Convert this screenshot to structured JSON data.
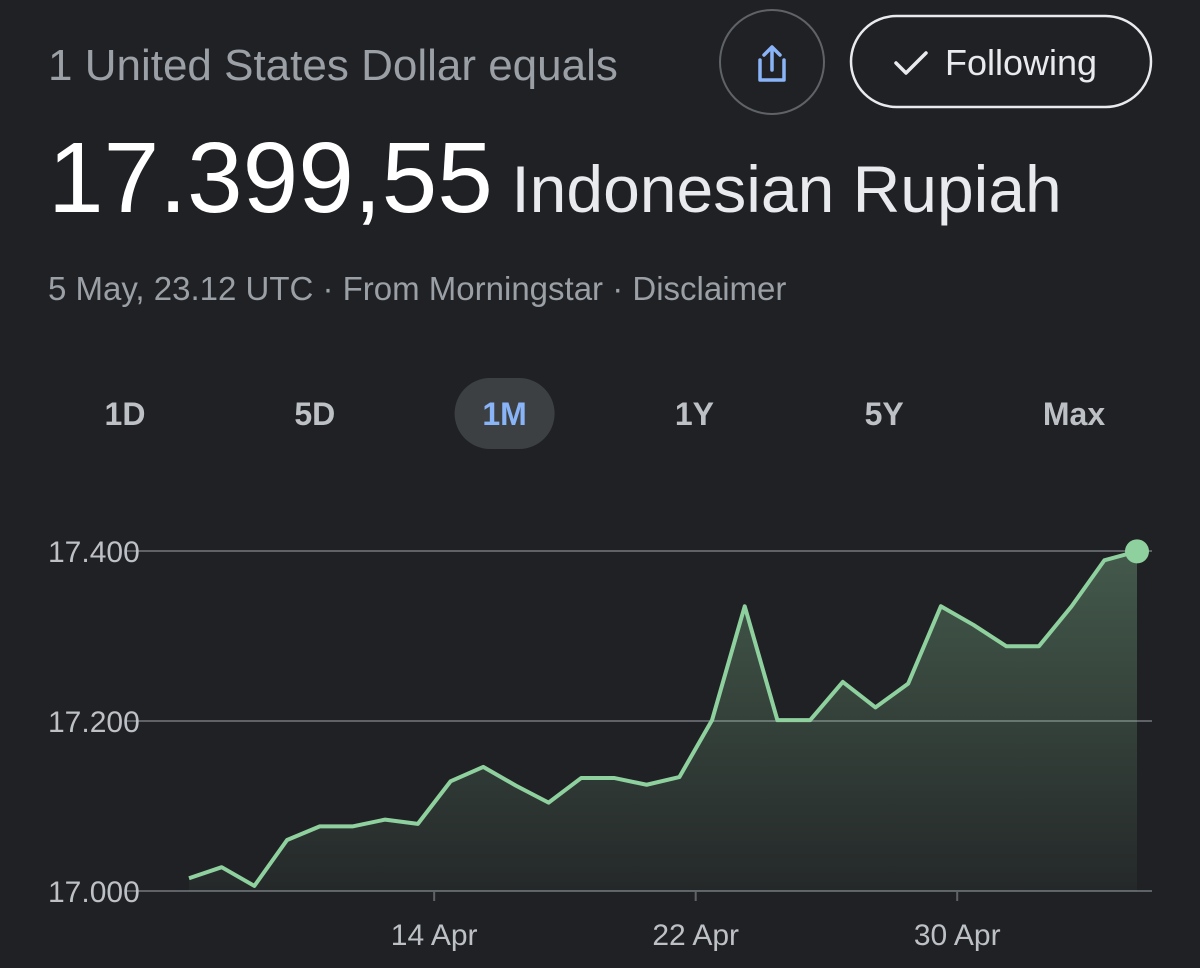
{
  "header": {
    "title": "1 United States Dollar equals",
    "follow_button": "Following",
    "amount": "17.399,55",
    "currency": "Indonesian Rupiah",
    "source_line": "5 May, 23.12 UTC · From Morningstar · Disclaimer"
  },
  "ranges": {
    "options": [
      "1D",
      "5D",
      "1M",
      "1Y",
      "5Y",
      "Max"
    ],
    "selected_index": 2
  },
  "chart_data": {
    "type": "line",
    "categories": [
      null,
      null,
      null,
      null,
      null,
      null,
      null,
      "14 Apr",
      null,
      null,
      null,
      null,
      null,
      null,
      null,
      "22 Apr",
      null,
      null,
      null,
      null,
      null,
      null,
      null,
      "30 Apr",
      null,
      null,
      null,
      null,
      null,
      null
    ],
    "series": [
      {
        "color": "#8fd19e",
        "values": [
          17015,
          17028,
          17006,
          17060,
          17076,
          17076,
          17084,
          17079,
          17129,
          17146,
          17124,
          17104,
          17133,
          17133,
          17125,
          17134,
          17201,
          17335,
          17201,
          17201,
          17246,
          17216,
          17244,
          17335,
          17313,
          17288,
          17288,
          17335,
          17389,
          17399.55
        ]
      }
    ],
    "ylim": [
      17000,
      17400
    ],
    "yticks": [
      {
        "value": 17000,
        "label": "17.000"
      },
      {
        "value": 17200,
        "label": "17.200"
      },
      {
        "value": 17400,
        "label": "17.400"
      }
    ],
    "grid": true
  }
}
